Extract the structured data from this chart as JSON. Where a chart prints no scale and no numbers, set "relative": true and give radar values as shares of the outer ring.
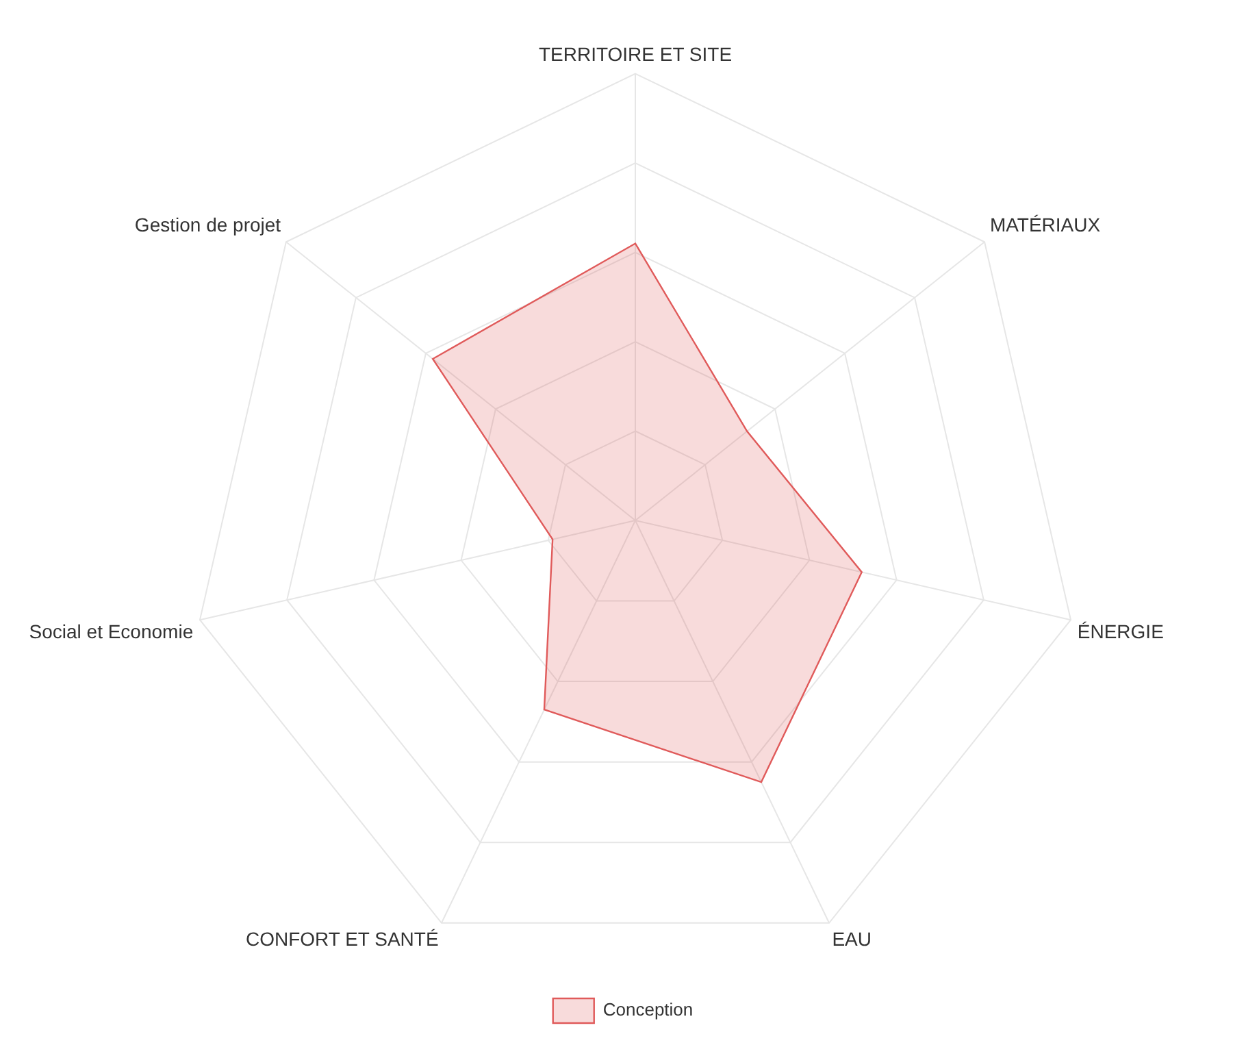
{
  "chart_data": {
    "type": "radar",
    "relative": true,
    "categories": [
      "TERRITOIRE ET SITE",
      "MATÉRIAUX",
      "ÉNERGIE",
      "EAU",
      "CONFORT ET SANTÉ",
      "Social et Economie",
      "Gestion de projet"
    ],
    "series": [
      {
        "name": "Conception",
        "color": "#e05a5a",
        "values": [
          0.62,
          0.32,
          0.52,
          0.65,
          0.47,
          0.19,
          0.58
        ]
      }
    ],
    "grid": true,
    "legend": "bottom",
    "marker": "none"
  }
}
